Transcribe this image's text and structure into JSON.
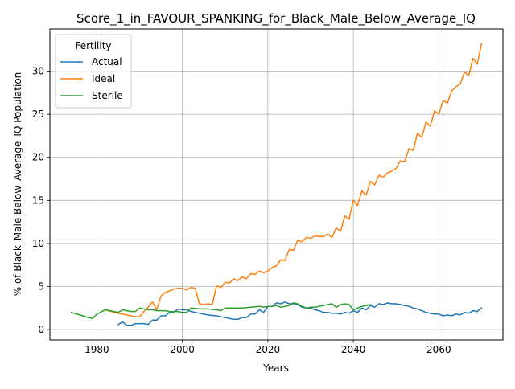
{
  "chart_data": {
    "type": "line",
    "title": "Score_1_in_FAVOUR_SPANKING_for_Black_Male_Below_Average_IQ",
    "xlabel": "Years",
    "ylabel": "% of Black_Male Below_Average_IQ Population",
    "xlim": [
      1969,
      2075
    ],
    "ylim": [
      -1.2,
      34.9
    ],
    "xticks": [
      1980,
      2000,
      2020,
      2040,
      2060
    ],
    "yticks": [
      0,
      5,
      10,
      15,
      20,
      25,
      30
    ],
    "grid": true,
    "legend": {
      "title": "Fertility",
      "location": "top-left"
    },
    "series": [
      {
        "name": "Actual",
        "color": "#1f77b4",
        "x": [
          1985,
          1986,
          1987,
          1988,
          1989,
          1990,
          1991,
          1992,
          1993,
          1994,
          1995,
          1996,
          1997,
          1998,
          1999,
          2000,
          2001,
          2002,
          2004,
          2006,
          2008,
          2010,
          2012,
          2013,
          2014,
          2015,
          2016,
          2017,
          2018,
          2019,
          2020,
          2021,
          2022,
          2023,
          2024,
          2025,
          2026,
          2027,
          2028,
          2029,
          2030,
          2031,
          2032,
          2033,
          2034,
          2035,
          2036,
          2037,
          2038,
          2039,
          2040,
          2041,
          2042,
          2043,
          2044,
          2045,
          2046,
          2047,
          2048,
          2049,
          2050,
          2051,
          2052,
          2053,
          2054,
          2055,
          2056,
          2057,
          2058,
          2059,
          2060,
          2061,
          2062,
          2063,
          2064,
          2065,
          2066,
          2067,
          2068,
          2069,
          2070
        ],
        "values": [
          0.6,
          0.9,
          0.5,
          0.5,
          0.7,
          0.7,
          0.7,
          0.6,
          1.1,
          1.1,
          1.6,
          1.6,
          2.0,
          2.0,
          2.4,
          2.3,
          2.3,
          2.1,
          1.9,
          1.7,
          1.6,
          1.4,
          1.2,
          1.2,
          1.4,
          1.4,
          1.8,
          1.8,
          2.3,
          2.0,
          2.7,
          2.7,
          3.1,
          3.0,
          3.2,
          3.0,
          3.0,
          2.9,
          2.6,
          2.5,
          2.5,
          2.3,
          2.2,
          2.0,
          2.0,
          1.9,
          1.9,
          1.8,
          2.0,
          1.9,
          2.2,
          2.0,
          2.5,
          2.3,
          2.8,
          2.6,
          3.0,
          2.9,
          3.1,
          3.0,
          3.0,
          2.9,
          2.8,
          2.7,
          2.5,
          2.4,
          2.2,
          2.0,
          1.9,
          1.8,
          1.8,
          1.6,
          1.7,
          1.6,
          1.8,
          1.7,
          2.0,
          1.9,
          2.2,
          2.1,
          2.5
        ]
      },
      {
        "name": "Ideal",
        "color": "#ff7f0e",
        "x": [
          1982,
          1984,
          1985,
          1986,
          1987,
          1988,
          1989,
          1990,
          1991,
          1992,
          1993,
          1994,
          1995,
          1996,
          1997,
          1998,
          1999,
          2000,
          2001,
          2002,
          2003,
          2004,
          2005,
          2006,
          2007,
          2008,
          2009,
          2010,
          2011,
          2012,
          2013,
          2014,
          2015,
          2016,
          2017,
          2018,
          2019,
          2020,
          2021,
          2022,
          2023,
          2024,
          2025,
          2026,
          2027,
          2028,
          2029,
          2030,
          2031,
          2032,
          2033,
          2034,
          2035,
          2036,
          2037,
          2038,
          2039,
          2040,
          2041,
          2042,
          2043,
          2044,
          2045,
          2046,
          2047,
          2048,
          2049,
          2050,
          2051,
          2052,
          2053,
          2054,
          2055,
          2056,
          2057,
          2058,
          2059,
          2060,
          2061,
          2062,
          2063,
          2064,
          2065,
          2066,
          2067,
          2068,
          2069,
          2070
        ],
        "values": [
          2.3,
          2.0,
          1.9,
          1.8,
          1.7,
          1.6,
          1.5,
          1.5,
          2.1,
          2.6,
          3.2,
          2.3,
          3.9,
          4.3,
          4.5,
          4.7,
          4.8,
          4.8,
          4.6,
          4.9,
          4.8,
          3.0,
          2.9,
          3.0,
          2.9,
          5.1,
          4.9,
          5.5,
          5.4,
          5.9,
          5.7,
          6.1,
          5.9,
          6.5,
          6.4,
          6.8,
          6.6,
          6.8,
          7.2,
          7.4,
          8.1,
          8.0,
          9.3,
          9.2,
          10.4,
          10.2,
          10.7,
          10.6,
          10.9,
          10.8,
          10.8,
          11.1,
          10.7,
          11.8,
          11.4,
          13.2,
          12.8,
          15.0,
          14.4,
          16.1,
          15.6,
          17.2,
          16.8,
          17.9,
          17.7,
          18.2,
          18.4,
          18.7,
          19.6,
          19.5,
          21.0,
          20.8,
          22.8,
          22.3,
          24.1,
          23.6,
          25.4,
          25.0,
          26.6,
          26.3,
          27.7,
          28.2,
          28.5,
          29.9,
          29.5,
          31.5,
          30.8,
          33.2
        ]
      },
      {
        "name": "Sterile",
        "color": "#2ca02c",
        "x": [
          1974,
          1976,
          1978,
          1979,
          1980,
          1982,
          1984,
          1985,
          1986,
          1987,
          1988,
          1989,
          1990,
          1991,
          1992,
          1993,
          1994,
          1995,
          1996,
          1997,
          1998,
          1999,
          2000,
          2001,
          2002,
          2004,
          2006,
          2008,
          2009,
          2010,
          2012,
          2014,
          2016,
          2018,
          2019,
          2020,
          2021,
          2022,
          2023,
          2024,
          2025,
          2026,
          2027,
          2028,
          2029,
          2030,
          2031,
          2032,
          2033,
          2034,
          2035,
          2036,
          2037,
          2038,
          2039,
          2040,
          2041,
          2042,
          2043,
          2044
        ],
        "values": [
          2.0,
          1.7,
          1.4,
          1.3,
          1.8,
          2.3,
          2.1,
          2.0,
          2.3,
          2.2,
          2.1,
          2.1,
          2.5,
          2.4,
          2.3,
          2.3,
          2.2,
          2.2,
          2.2,
          2.1,
          2.1,
          2.1,
          2.0,
          2.0,
          2.5,
          2.4,
          2.4,
          2.3,
          2.2,
          2.5,
          2.5,
          2.5,
          2.6,
          2.7,
          2.6,
          2.7,
          2.7,
          2.8,
          2.6,
          2.7,
          2.8,
          3.1,
          3.0,
          2.7,
          2.5,
          2.6,
          2.6,
          2.7,
          2.8,
          2.9,
          3.0,
          2.6,
          2.9,
          3.0,
          2.9,
          2.3,
          2.5,
          2.7,
          2.8,
          2.9
        ]
      }
    ]
  }
}
